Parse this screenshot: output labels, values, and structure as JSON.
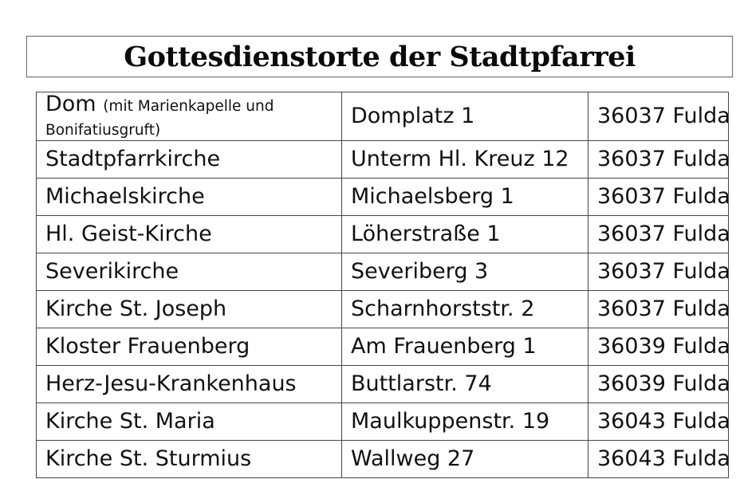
{
  "page": {
    "background": "#ffffff",
    "kind": "document-table-page"
  },
  "colors": {
    "title_border": "#757575",
    "table_border": "#474747",
    "text": "#111111",
    "background": "#ffffff"
  },
  "title": {
    "text": "Gottesdienstorte der Stadtpfarrei"
  },
  "table": {
    "columns": [
      "location",
      "street_address",
      "postal_city"
    ],
    "rows": [
      {
        "name": "Dom",
        "note": "(mit Marienkapelle und Bonifatiusgruft)",
        "address": "Domplatz 1",
        "city": "36037 Fulda"
      },
      {
        "name": "Stadtpfarrkirche",
        "address": "Unterm Hl. Kreuz 12",
        "city": "36037 Fulda"
      },
      {
        "name": "Michaelskirche",
        "address": "Michaelsberg 1",
        "city": "36037 Fulda"
      },
      {
        "name": "Hl. Geist-Kirche",
        "address": "Löherstraße 1",
        "city": "36037 Fulda"
      },
      {
        "name": "Severikirche",
        "address": "Severiberg 3",
        "city": "36037 Fulda"
      },
      {
        "name": "Kirche St. Joseph",
        "address": "Scharnhorststr. 2",
        "city": "36037 Fulda"
      },
      {
        "name": "Kloster Frauenberg",
        "address": "Am Frauenberg 1",
        "city": "36039 Fulda"
      },
      {
        "name": "Herz-Jesu-Krankenhaus",
        "address": "Buttlarstr. 74",
        "city": "36039 Fulda"
      },
      {
        "name": "Kirche St. Maria",
        "address": "Maulkuppenstr. 19",
        "city": "36043 Fulda"
      },
      {
        "name": "Kirche St. Sturmius",
        "address": "Wallweg 27",
        "city": "36043 Fulda"
      }
    ]
  }
}
